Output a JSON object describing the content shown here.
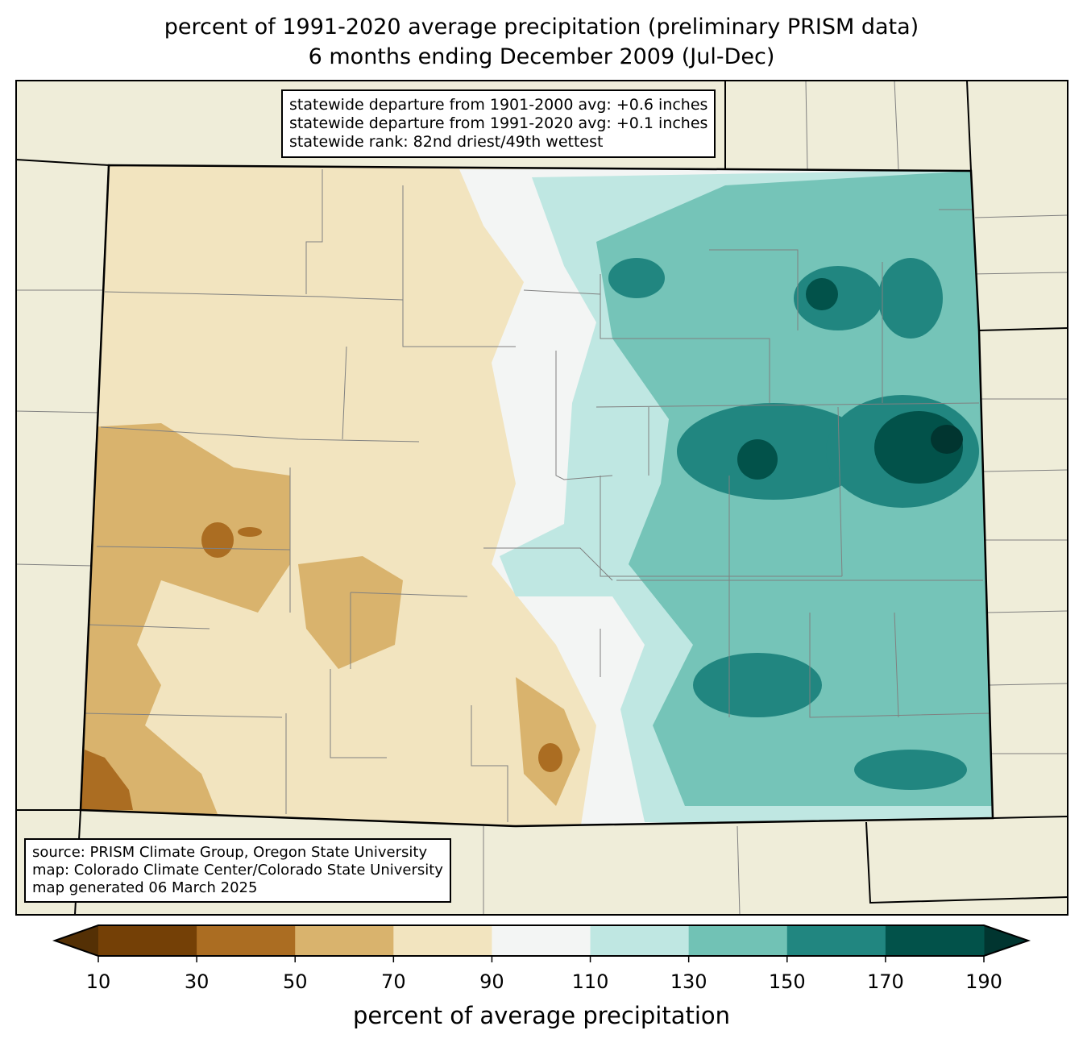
{
  "title": {
    "line1": "percent of 1991-2020 average precipitation (preliminary PRISM data)",
    "line2": "6 months ending December 2009 (Jul-Dec)"
  },
  "stats_box": {
    "line1": "statewide departure from 1901-2000 avg: +0.6 inches",
    "line2": "statewide departure from 1991-2020 avg: +0.1 inches",
    "line3": "statewide rank: 82nd driest/49th wettest"
  },
  "source_box": {
    "line1": "source: PRISM Climate Group, Oregon State University",
    "line2": "map: Colorado Climate Center/Colorado State University",
    "line3": "map generated 06 March 2025"
  },
  "colorbar": {
    "label": "percent of average precipitation",
    "ticks": [
      "10",
      "30",
      "50",
      "70",
      "90",
      "110",
      "130",
      "150",
      "170",
      "190"
    ],
    "under_color": "#543005",
    "over_color": "#013530",
    "colors": [
      "#744006",
      "#ab6d22",
      "#d9b36d",
      "#f2e4bf",
      "#f3f5f4",
      "#bfe7e2",
      "#71c2b5",
      "#218680",
      "#02524a"
    ]
  },
  "map_colors": {
    "background": "#efedd9",
    "border": "#000000",
    "county": "#808080"
  }
}
